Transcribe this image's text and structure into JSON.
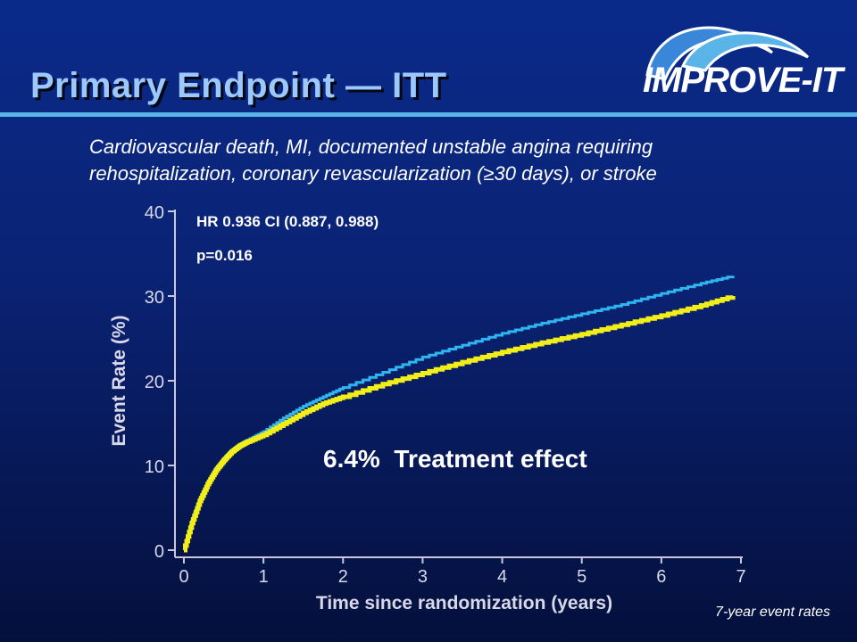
{
  "slide": {
    "title": "Primary Endpoint — ITT",
    "logo_text": "IMPROVE-IT",
    "subtitle_line1": "Cardiovascular death, MI, documented unstable angina requiring",
    "subtitle_line2": "rehospitalization, coronary revascularization (≥30 days), or stroke",
    "footnote": "7-year event rates"
  },
  "colors": {
    "background": "#0a2272",
    "title": "#9cc8ff",
    "rule": "#5ab4e8",
    "series_blue": "#2fb6f0",
    "series_yellow": "#f2ee1a"
  },
  "chart_data": {
    "type": "line",
    "xlabel": "Time since randomization (years)",
    "ylabel": "Event Rate (%)",
    "xlim": [
      0,
      7
    ],
    "ylim": [
      0,
      40
    ],
    "x_ticks": [
      "0",
      "1",
      "2",
      "3",
      "4",
      "5",
      "6",
      "7"
    ],
    "y_ticks": [
      "0",
      "10",
      "20",
      "30",
      "40"
    ],
    "grid": false,
    "annotations": {
      "hr": "HR 0.936 CI (0.887, 0.988)",
      "p": "p=0.016",
      "effect": "6.4%  Treatment effect"
    },
    "series": [
      {
        "color": "#2fb6f0",
        "x": [
          0,
          0.1,
          0.2,
          0.3,
          0.4,
          0.5,
          0.6,
          0.7,
          0.8,
          1.0,
          1.25,
          1.5,
          1.75,
          2.0,
          2.5,
          3.0,
          3.5,
          4.0,
          4.5,
          5.0,
          5.5,
          6.0,
          6.5,
          6.9
        ],
        "y": [
          0,
          3.5,
          6.0,
          8.0,
          9.6,
          10.8,
          11.8,
          12.5,
          13.0,
          14.0,
          15.6,
          17.0,
          18.1,
          19.2,
          21.0,
          22.8,
          24.2,
          25.6,
          26.8,
          27.9,
          29.0,
          30.3,
          31.5,
          32.4
        ]
      },
      {
        "color": "#f2ee1a",
        "x": [
          0,
          0.1,
          0.2,
          0.3,
          0.4,
          0.5,
          0.6,
          0.7,
          0.8,
          1.0,
          1.25,
          1.5,
          1.75,
          2.0,
          2.5,
          3.0,
          3.5,
          4.0,
          4.5,
          5.0,
          5.5,
          6.0,
          6.5,
          6.9
        ],
        "y": [
          0,
          3.2,
          5.8,
          7.8,
          9.4,
          10.6,
          11.6,
          12.3,
          12.8,
          13.6,
          14.9,
          16.2,
          17.3,
          18.1,
          19.6,
          20.9,
          22.2,
          23.4,
          24.5,
          25.5,
          26.6,
          27.7,
          28.9,
          30.0
        ]
      }
    ]
  }
}
